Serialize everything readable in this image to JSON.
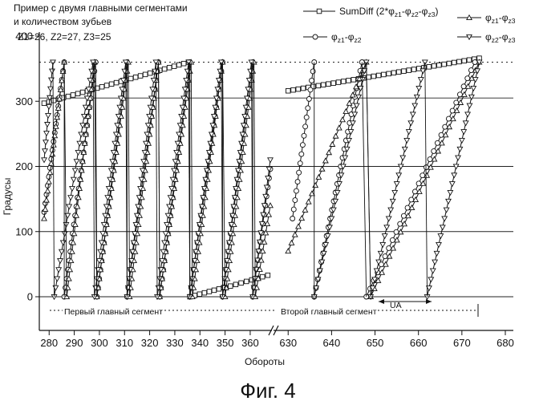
{
  "chart_data": {
    "type": "line",
    "title": "Пример с двумя главными сегментами",
    "subtitle": "и количеством зубьев",
    "params": "Z1=26, Z2=27, Z3=25",
    "xlabel": "Обороты",
    "ylabel": "Градусы",
    "caption": "Фиг. 4",
    "ylim": [
      0,
      400
    ],
    "yticks": [
      0,
      100,
      200,
      300,
      400
    ],
    "xticks_left": [
      280,
      290,
      300,
      310,
      320,
      330,
      340,
      350,
      360
    ],
    "xticks_right": [
      630,
      640,
      650,
      660,
      670,
      680
    ],
    "xlim_left": [
      278,
      368
    ],
    "xlim_right": [
      627,
      680
    ],
    "axis_break": "between 368 and 627",
    "gridlines_y": [
      0,
      100,
      200,
      305,
      360
    ],
    "legend": {
      "placement": "top-right",
      "entries": [
        {
          "name_parts": [
            "SumDiff (2*",
            "φ",
            "z1",
            "-",
            "φ",
            "z2",
            "-",
            "φ",
            "z3",
            ")"
          ],
          "marker": "square"
        },
        {
          "name_parts": [
            "φ",
            "z1",
            "-",
            "φ",
            "z2"
          ],
          "marker": "circle"
        },
        {
          "name_parts": [
            "φ",
            "z1",
            "-",
            "φ",
            "z3"
          ],
          "marker": "triangle-up"
        },
        {
          "name_parts": [
            "φ",
            "z2",
            "-",
            "φ",
            "z3"
          ],
          "marker": "triangle-down"
        }
      ]
    },
    "annotations": {
      "segment1": "Первый главный сегмент",
      "segment2": "Второй главный сегмент",
      "ua": "UA"
    },
    "series": [
      {
        "marker": "square",
        "segments": [
          {
            "x": [
              278,
              335.5
            ],
            "y": [
              297,
              360
            ]
          },
          {
            "x": [
              336,
              349.5
            ],
            "y": [
              0,
              14
            ]
          },
          {
            "x": [
              350,
              367
            ],
            "y": [
              14,
              33
            ]
          },
          {
            "x": [
              630,
              674
            ],
            "y": [
              316,
              366
            ]
          }
        ]
      },
      {
        "marker": "circle",
        "segments": [
          {
            "x": [
              278,
              286
            ],
            "y": [
              130,
              360
            ]
          },
          {
            "x": [
              286,
              298.5
            ],
            "y": [
              0,
              360
            ]
          },
          {
            "x": [
              299,
              311
            ],
            "y": [
              0,
              360
            ]
          },
          {
            "x": [
              311,
              323.5
            ],
            "y": [
              0,
              360
            ]
          },
          {
            "x": [
              324,
              336
            ],
            "y": [
              0,
              360
            ]
          },
          {
            "x": [
              336,
              349
            ],
            "y": [
              0,
              360
            ]
          },
          {
            "x": [
              349,
              361
            ],
            "y": [
              0,
              360
            ]
          },
          {
            "x": [
              361,
              368
            ],
            "y": [
              0,
              196
            ]
          },
          {
            "x": [
              631,
              636
            ],
            "y": [
              120,
              360
            ]
          },
          {
            "x": [
              636,
              647
            ],
            "y": [
              0,
              360
            ]
          },
          {
            "x": [
              648,
              673
            ],
            "y": [
              0,
              360
            ]
          }
        ]
      },
      {
        "marker": "triangle-up",
        "segments": [
          {
            "x": [
              278,
              286
            ],
            "y": [
              120,
              360
            ]
          },
          {
            "x": [
              287,
              298
            ],
            "y": [
              0,
              360
            ]
          },
          {
            "x": [
              299,
              311.5
            ],
            "y": [
              0,
              360
            ]
          },
          {
            "x": [
              312,
              323.5
            ],
            "y": [
              0,
              360
            ]
          },
          {
            "x": [
              324,
              336.5
            ],
            "y": [
              0,
              360
            ]
          },
          {
            "x": [
              337,
              349
            ],
            "y": [
              0,
              360
            ]
          },
          {
            "x": [
              350,
              361.5
            ],
            "y": [
              0,
              360
            ]
          },
          {
            "x": [
              362,
              368
            ],
            "y": [
              0,
              140
            ]
          },
          {
            "x": [
              630,
              648
            ],
            "y": [
              70,
              360
            ]
          },
          {
            "x": [
              649,
              674
            ],
            "y": [
              0,
              360
            ]
          }
        ]
      },
      {
        "marker": "triangle-down",
        "segments": [
          {
            "x": [
              278,
              281.5
            ],
            "y": [
              210,
              360
            ]
          },
          {
            "x": [
              282,
              297.5
            ],
            "y": [
              0,
              360
            ]
          },
          {
            "x": [
              298,
              310.5
            ],
            "y": [
              0,
              360
            ]
          },
          {
            "x": [
              311,
              322.5
            ],
            "y": [
              0,
              360
            ]
          },
          {
            "x": [
              323,
              335.5
            ],
            "y": [
              0,
              360
            ]
          },
          {
            "x": [
              336,
              348.5
            ],
            "y": [
              0,
              360
            ]
          },
          {
            "x": [
              349,
              360.5
            ],
            "y": [
              0,
              360
            ]
          },
          {
            "x": [
              361,
              368
            ],
            "y": [
              0,
              210
            ]
          },
          {
            "x": [
              636,
              648
            ],
            "y": [
              0,
              360
            ]
          },
          {
            "x": [
              649,
              661.5
            ],
            "y": [
              0,
              360
            ]
          },
          {
            "x": [
              662,
              674
            ],
            "y": [
              0,
              360
            ]
          }
        ]
      }
    ]
  }
}
